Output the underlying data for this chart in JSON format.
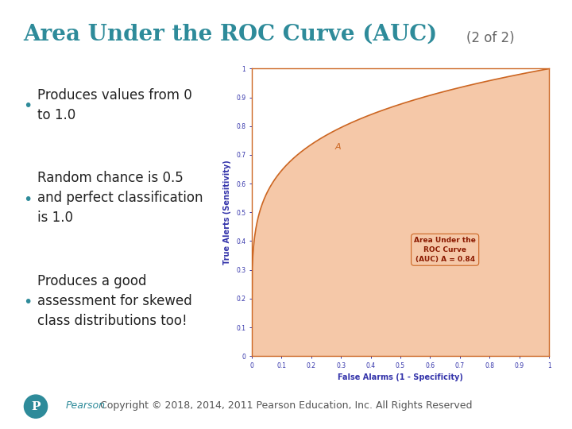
{
  "title_main": "Area Under the ROC Curve (AUC)",
  "title_sub": "(2 of 2)",
  "title_color": "#2e8b9a",
  "title_sub_color": "#666666",
  "title_fontsize": 20,
  "title_sub_fontsize": 12,
  "bullet_color": "#2e8b9a",
  "bullet_text_color": "#222222",
  "bullet_fontsize": 12,
  "bullets": [
    "Produces values from 0\nto 1.0",
    "Random chance is 0.5\nand perfect classification\nis 1.0",
    "Produces a good\nassessment for skewed\nclass distributions too!"
  ],
  "roc_curve_color": "#cc6622",
  "roc_fill_color": "#f5c8a8",
  "roc_border_color": "#cc6622",
  "roc_xlabel": "False Alarms (1 - Specificity)",
  "roc_ylabel": "True Alerts (Sensitivity)",
  "roc_xlabel_color": "#3333aa",
  "roc_ylabel_color": "#3333aa",
  "roc_tick_color": "#3333aa",
  "roc_label_A_color": "#cc6622",
  "roc_annotation_color": "#8b1a00",
  "roc_annotation_bg": "#f5c8a8",
  "roc_annotation_text": "Area Under the\nROC Curve\n(AUC) A = 0.84",
  "background_color": "#ffffff",
  "footer_text": "Copyright © 2018, 2014, 2011 Pearson Education, Inc. All Rights Reserved",
  "footer_color": "#555555",
  "footer_fontsize": 9,
  "pearson_logo_color": "#2e8b9a",
  "pearson_text_color": "#2e8b9a",
  "separator_color": "#cccccc"
}
